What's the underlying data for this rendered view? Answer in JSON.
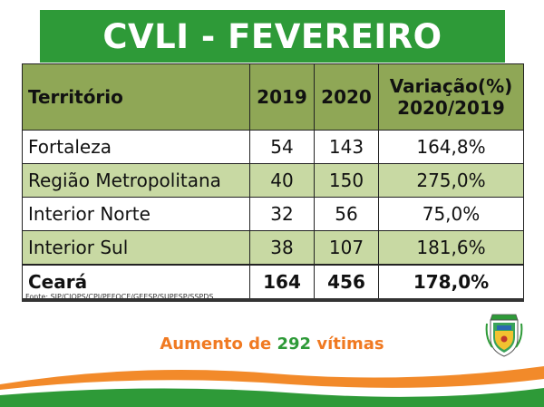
{
  "title": "CVLI - FEVEREIRO",
  "table": {
    "headers": {
      "territory": "Território",
      "y2019": "2019",
      "y2020": "2020",
      "variation_line1": "Variação(%)",
      "variation_line2": "2020/2019"
    },
    "rows": [
      {
        "territory": "Fortaleza",
        "y2019": "54",
        "y2020": "143",
        "variation": "164,8%"
      },
      {
        "territory": "Região Metropolitana",
        "y2019": "40",
        "y2020": "150",
        "variation": "275,0%"
      },
      {
        "territory": "Interior Norte",
        "y2019": "32",
        "y2020": "56",
        "variation": "75,0%"
      },
      {
        "territory": "Interior Sul",
        "y2019": "38",
        "y2020": "107",
        "variation": "181,6%"
      }
    ],
    "total": {
      "territory": "Ceará",
      "y2019": "164",
      "y2020": "456",
      "variation": "178,0%"
    }
  },
  "source": "Fonte: SIP/CIOPS/CPI/PEFOCE/GEESP/SUPESP/SSPDS",
  "increase": {
    "prefix": "Aumento de ",
    "number": "292",
    "suffix": " vítimas"
  },
  "colors": {
    "banner_green": "#2e9a38",
    "header_olive": "#8fa756",
    "row_light_green": "#c8d9a3",
    "highlight_orange": "#f07a22"
  },
  "icons": {
    "crest": "ceara-coat-of-arms-icon"
  }
}
